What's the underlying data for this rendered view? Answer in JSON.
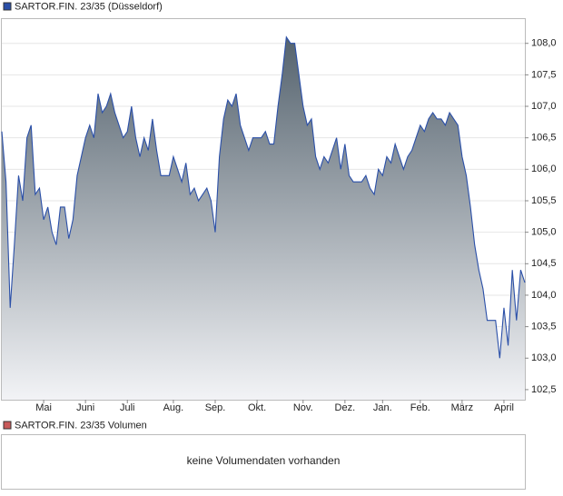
{
  "chart_data": {
    "type": "area",
    "categories": [
      null,
      null,
      null,
      null,
      null,
      null,
      null,
      null,
      null,
      null,
      "Mai",
      null,
      null,
      null,
      null,
      null,
      null,
      null,
      null,
      null,
      "Juni",
      null,
      null,
      null,
      null,
      null,
      null,
      null,
      null,
      null,
      "Juli",
      null,
      null,
      null,
      null,
      null,
      null,
      null,
      null,
      null,
      null,
      "Aug.",
      null,
      null,
      null,
      null,
      null,
      null,
      null,
      null,
      null,
      "Sep.",
      null,
      null,
      null,
      null,
      null,
      null,
      null,
      null,
      null,
      "Okt.",
      null,
      null,
      null,
      null,
      null,
      null,
      null,
      null,
      null,
      null,
      "Nov.",
      null,
      null,
      null,
      null,
      null,
      null,
      null,
      null,
      null,
      "Dez.",
      null,
      null,
      null,
      null,
      null,
      null,
      null,
      null,
      "Jan.",
      null,
      null,
      null,
      null,
      null,
      null,
      null,
      null,
      "Feb.",
      null,
      null,
      null,
      null,
      null,
      null,
      null,
      null,
      null,
      "März",
      null,
      null,
      null,
      null,
      null,
      null,
      null,
      null,
      null,
      "April",
      null,
      null,
      null,
      null,
      null
    ],
    "series": [
      {
        "name": "SARTOR.FIN. 23/35 (Düsseldorf)",
        "color": "#2a4fa8",
        "values": [
          106.6,
          105.8,
          103.8,
          104.8,
          105.9,
          105.5,
          106.5,
          106.7,
          105.6,
          105.7,
          105.2,
          105.4,
          105.0,
          104.8,
          105.4,
          105.4,
          104.9,
          105.2,
          105.9,
          106.2,
          106.5,
          106.7,
          106.5,
          107.2,
          106.9,
          107.0,
          107.2,
          106.9,
          106.7,
          106.5,
          106.6,
          107.0,
          106.5,
          106.2,
          106.5,
          106.3,
          106.8,
          106.3,
          105.9,
          105.9,
          105.9,
          106.2,
          106.0,
          105.8,
          106.1,
          105.6,
          105.7,
          105.5,
          105.6,
          105.7,
          105.5,
          105.0,
          106.2,
          106.8,
          107.1,
          107.0,
          107.2,
          106.7,
          106.5,
          106.3,
          106.5,
          106.5,
          106.5,
          106.6,
          106.4,
          106.4,
          107.0,
          107.5,
          108.1,
          108.0,
          108.0,
          107.5,
          107.0,
          106.7,
          106.8,
          106.2,
          106.0,
          106.2,
          106.1,
          106.3,
          106.5,
          106.0,
          106.4,
          105.9,
          105.8,
          105.8,
          105.8,
          105.9,
          105.7,
          105.6,
          106.0,
          105.9,
          106.2,
          106.1,
          106.4,
          106.2,
          106.0,
          106.2,
          106.3,
          106.5,
          106.7,
          106.6,
          106.8,
          106.9,
          106.8,
          106.8,
          106.7,
          106.9,
          106.8,
          106.7,
          106.2,
          105.9,
          105.4,
          104.8,
          104.4,
          104.1,
          103.6,
          103.6,
          103.6,
          103.0,
          103.8,
          103.2,
          104.4,
          103.6,
          104.4,
          104.2
        ]
      }
    ],
    "ylim": [
      102.34,
      108.4
    ],
    "yticks": [
      {
        "value": 102.5,
        "label": "102,5"
      },
      {
        "value": 103,
        "label": "103,0"
      },
      {
        "value": 103.5,
        "label": "103,5"
      },
      {
        "value": 104,
        "label": "104,0"
      },
      {
        "value": 104.5,
        "label": "104,5"
      },
      {
        "value": 105,
        "label": "105,0"
      },
      {
        "value": 105.5,
        "label": "105,5"
      },
      {
        "value": 106,
        "label": "106,0"
      },
      {
        "value": 106.5,
        "label": "106,5"
      },
      {
        "value": 107,
        "label": "107,0"
      },
      {
        "value": 107.5,
        "label": "107,5"
      },
      {
        "value": 108,
        "label": "108,0"
      }
    ],
    "grid": true
  },
  "volume_panel": {
    "legend": "SARTOR.FIN. 23/35 Volumen",
    "color": "#c85a5a",
    "message": "keine Volumendaten vorhanden"
  }
}
